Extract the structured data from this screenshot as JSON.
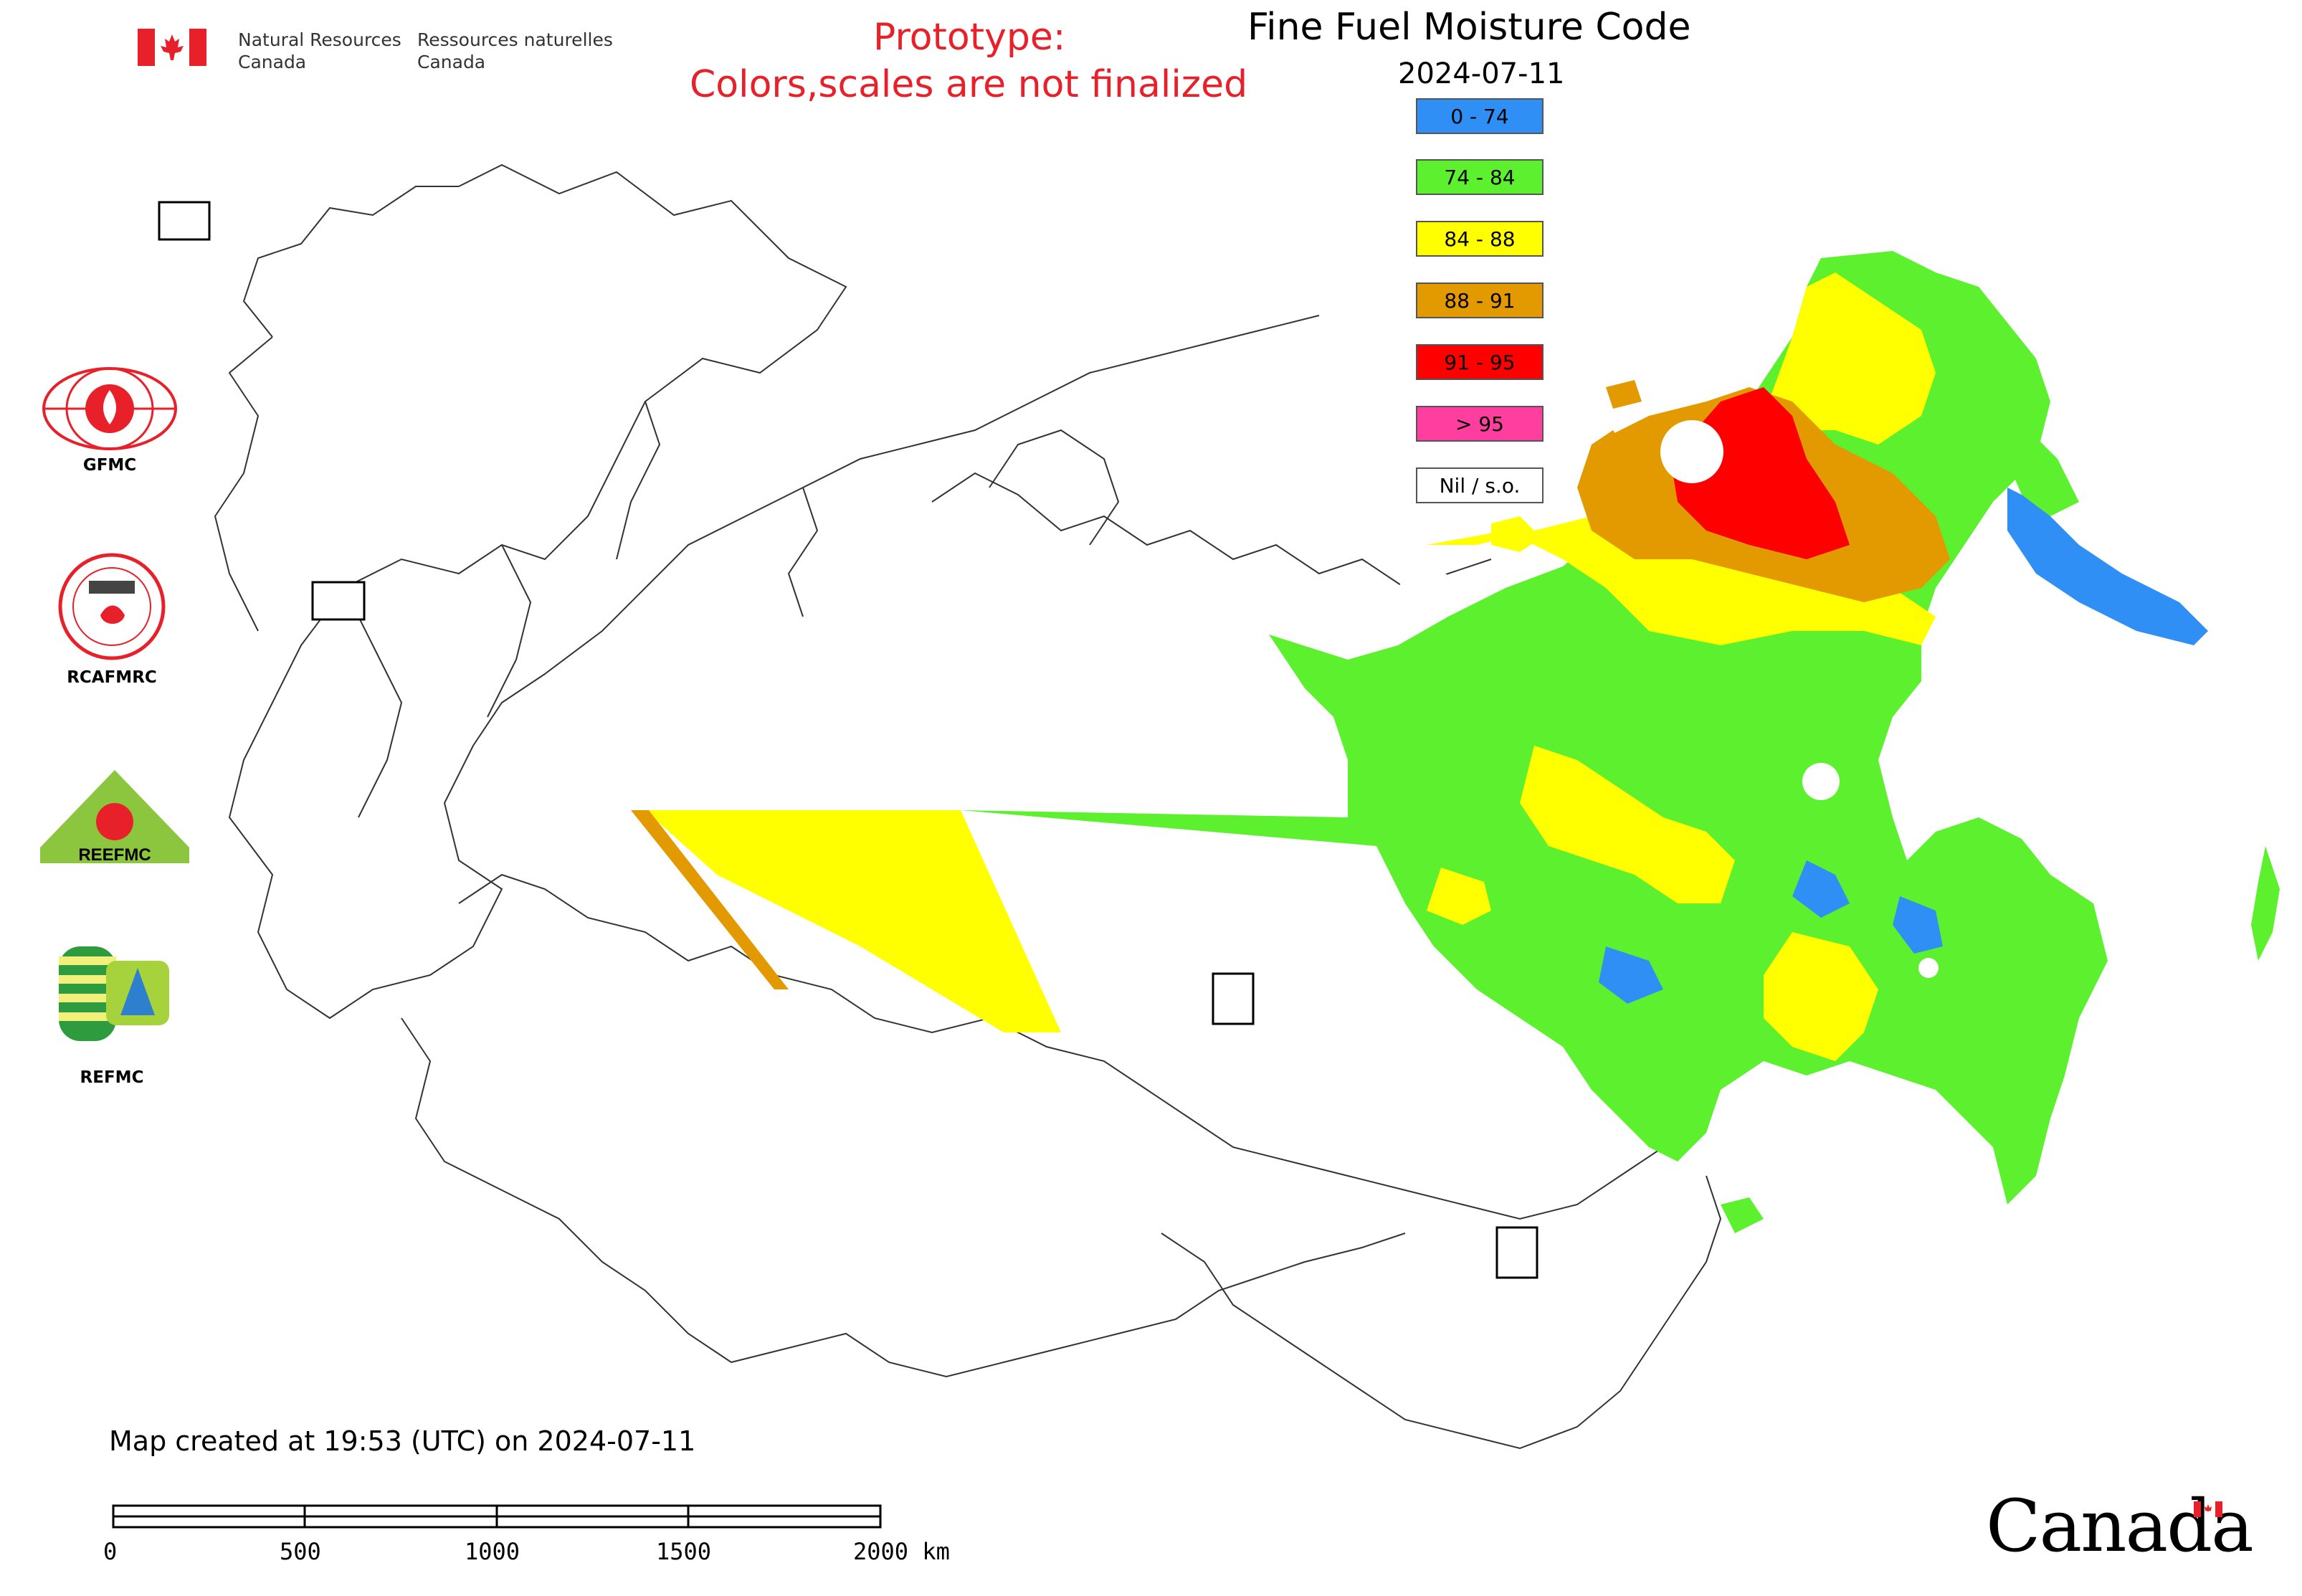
{
  "header": {
    "department_en_line1": "Natural Resources",
    "department_en_line2": "Canada",
    "department_fr_line1": "Ressources naturelles",
    "department_fr_line2": "Canada",
    "prototype_line1": "Prototype:",
    "prototype_line2": "Colors,scales are not finalized"
  },
  "map": {
    "title": "Fine Fuel Moisture Code",
    "date": "2024-07-11",
    "created_note": "Map created at 19:53 (UTC) on 2024-07-11"
  },
  "legend": {
    "items": [
      {
        "label": "0 - 74",
        "color": "#2f8ff5"
      },
      {
        "label": "74 - 84",
        "color": "#5cf02e"
      },
      {
        "label": "84 - 88",
        "color": "#ffff00"
      },
      {
        "label": "88 - 91",
        "color": "#e39a00"
      },
      {
        "label": "91 - 95",
        "color": "#ff0000"
      },
      {
        "label": "> 95",
        "color": "#ff3ea0"
      },
      {
        "label": "Nil / s.o.",
        "color": "#ffffff"
      }
    ]
  },
  "organizations": [
    {
      "label": "GFMC",
      "icon": "gfmc-logo-icon"
    },
    {
      "label": "RCAFMRC",
      "icon": "rcafmrc-logo-icon"
    },
    {
      "label": "REEFMC",
      "icon": "reefmc-logo-icon"
    },
    {
      "label": "REFMC",
      "icon": "refmc-logo-icon"
    }
  ],
  "scale_bar": {
    "ticks": [
      "0",
      "500",
      "1000",
      "1500",
      "2000 km"
    ]
  },
  "footer": {
    "wordmark": "Canada"
  }
}
